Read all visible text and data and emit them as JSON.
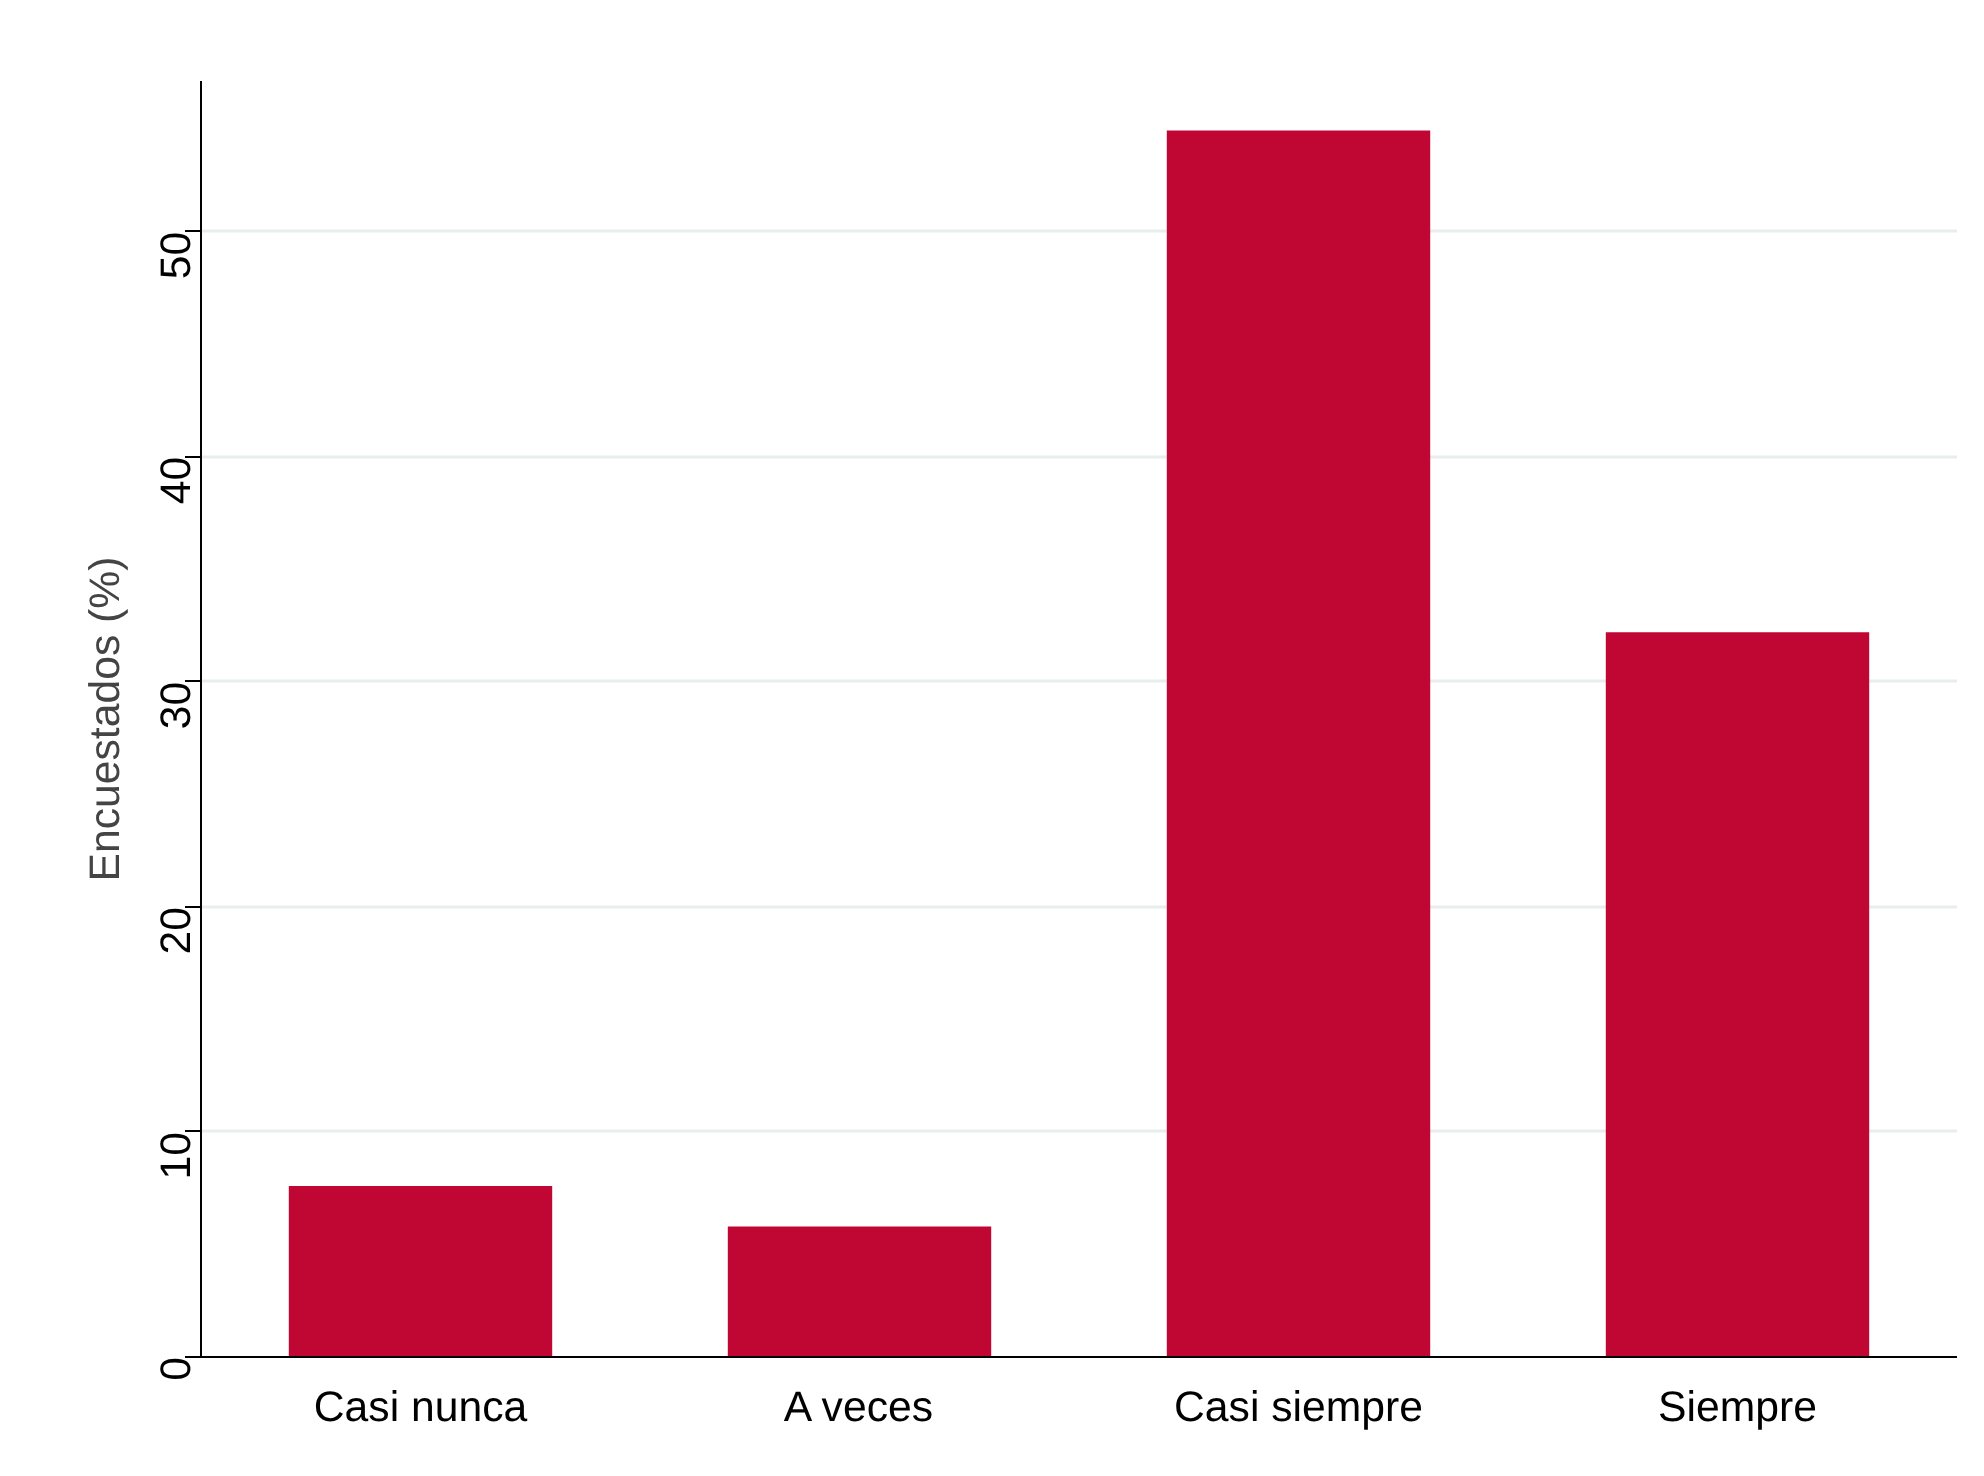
{
  "chart_data": {
    "type": "bar",
    "ylabel": "Encuestados (%)",
    "categories": [
      "Casi nunca",
      "A veces",
      "Casi siempre",
      "Siempre"
    ],
    "values": [
      7.6,
      5.8,
      54.5,
      32.2
    ],
    "color": "#c00734",
    "ylim": [
      0,
      56.7
    ],
    "yticks": [
      0,
      10,
      20,
      30,
      40,
      50
    ],
    "grid": "y"
  }
}
